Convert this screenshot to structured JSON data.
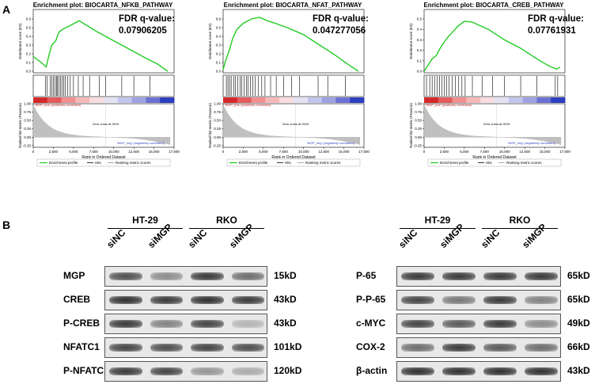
{
  "panel_a": {
    "letter": "A",
    "plots": [
      {
        "title": "Enrichment plot: BIOCARTA_NFKB_PATHWAY",
        "fdr_label": "FDR q-value:",
        "fdr_value": "0.07906205",
        "es_ticks": [
          "0.6",
          "0.5",
          "0.4",
          "0.3",
          "0.2",
          "0.1",
          "0.0"
        ],
        "es_max": 0.6,
        "es_curve": [
          [
            0,
            0.17
          ],
          [
            1000,
            0.1
          ],
          [
            1600,
            0.05
          ],
          [
            2000,
            0.2
          ],
          [
            2300,
            0.3
          ],
          [
            2800,
            0.35
          ],
          [
            3200,
            0.45
          ],
          [
            3800,
            0.49
          ],
          [
            4500,
            0.52
          ],
          [
            5700,
            0.58
          ],
          [
            8000,
            0.45
          ],
          [
            10000,
            0.35
          ],
          [
            12000,
            0.25
          ],
          [
            14000,
            0.15
          ],
          [
            15500,
            0.08
          ],
          [
            16700,
            0.0
          ]
        ]
      },
      {
        "title": "Enrichment plot: BIOCARTA_NFAT_PATHWAY",
        "fdr_label": "FDR q-value:",
        "fdr_value": "0.047277056",
        "es_ticks": [
          "0.6",
          "0.5",
          "0.4",
          "0.3",
          "0.2",
          "0.1",
          "0.0"
        ],
        "es_max": 0.6,
        "es_curve": [
          [
            0,
            0.02
          ],
          [
            300,
            0.12
          ],
          [
            800,
            0.25
          ],
          [
            1200,
            0.38
          ],
          [
            1700,
            0.48
          ],
          [
            2500,
            0.55
          ],
          [
            3500,
            0.6
          ],
          [
            4500,
            0.62
          ],
          [
            5500,
            0.58
          ],
          [
            6500,
            0.55
          ],
          [
            8000,
            0.5
          ],
          [
            10000,
            0.42
          ],
          [
            12000,
            0.3
          ],
          [
            14000,
            0.18
          ],
          [
            15500,
            0.08
          ],
          [
            16800,
            0.0
          ]
        ]
      },
      {
        "title": "Enrichment plot: BIOCARTA_CREB_PATHWAY",
        "fdr_label": "FDR q-value:",
        "fdr_value": "0.07761931",
        "es_ticks": [
          "0.5",
          "0.4",
          "0.3",
          "0.2",
          "0.1",
          "0.0"
        ],
        "es_max": 0.5,
        "es_curve": [
          [
            0,
            0.0
          ],
          [
            500,
            0.06
          ],
          [
            1000,
            0.12
          ],
          [
            1500,
            0.15
          ],
          [
            2000,
            0.22
          ],
          [
            2500,
            0.28
          ],
          [
            3000,
            0.33
          ],
          [
            3600,
            0.38
          ],
          [
            4200,
            0.43
          ],
          [
            5000,
            0.48
          ],
          [
            6000,
            0.47
          ],
          [
            8000,
            0.4
          ],
          [
            10000,
            0.3
          ],
          [
            12000,
            0.22
          ],
          [
            14000,
            0.12
          ],
          [
            15500,
            0.05
          ],
          [
            16500,
            0.02
          ],
          [
            16900,
            0.04
          ]
        ]
      }
    ],
    "y_axis_es": "Enrichment score (ES)",
    "y_axis_metric": "Ranked list metric (Pearson)",
    "metric_ticks": [
      "1.00",
      "0.75",
      "0.50",
      "0.25",
      "0.00",
      "-0.25"
    ],
    "x_axis_label": "Rank in Ordered Dataset",
    "x_ticks": [
      "0",
      "2,500",
      "5,000",
      "7,500",
      "10,000",
      "12,500",
      "15,000",
      "17,500"
    ],
    "pos_text": "'MGP_pos' (positively correlated)",
    "neg_text": "'MGP_neg' (negatively correlated)",
    "zero_cross": "Zero cross at 9019",
    "legend": {
      "profile": "Enrichment profile",
      "hits": "Hits",
      "ranking": "Ranking metric scores"
    },
    "colors": {
      "curve": "#22cc22",
      "hit": "#000000",
      "metric_fill": "#c0c0c0",
      "pos": "#d4282a",
      "neg": "#2b3fbf"
    }
  },
  "panel_b": {
    "letter": "B",
    "left_blot": {
      "groups": [
        "HT-29",
        "RKO"
      ],
      "lanes": [
        "siNC",
        "siMGP",
        "siNC",
        "siMGP"
      ],
      "proteins": [
        "MGP",
        "CREB",
        "P-CREB",
        "NFATC1",
        "P-NFATC1"
      ],
      "sizes": [
        "15kD",
        "43kD",
        "43kD",
        "101kD",
        "120kD"
      ],
      "intensities": [
        [
          0.75,
          0.45,
          0.85,
          0.6
        ],
        [
          0.9,
          0.85,
          0.9,
          0.85
        ],
        [
          0.85,
          0.5,
          0.8,
          0.25
        ],
        [
          0.8,
          0.75,
          0.8,
          0.75
        ],
        [
          0.85,
          0.8,
          0.4,
          0.3
        ]
      ]
    },
    "right_blot": {
      "groups": [
        "HT-29",
        "RKO"
      ],
      "lanes": [
        "siNC",
        "siMGP",
        "siNC",
        "siMGP"
      ],
      "proteins": [
        "P-65",
        "P-P-65",
        "c-MYC",
        "COX-2",
        "β-actin"
      ],
      "sizes": [
        "65kD",
        "65kD",
        "49kD",
        "66kD",
        "43kD"
      ],
      "intensities": [
        [
          0.85,
          0.85,
          0.85,
          0.85
        ],
        [
          0.8,
          0.55,
          0.85,
          0.5
        ],
        [
          0.8,
          0.7,
          0.85,
          0.45
        ],
        [
          0.6,
          0.85,
          0.7,
          0.6
        ],
        [
          0.9,
          0.9,
          0.9,
          0.9
        ]
      ]
    }
  }
}
